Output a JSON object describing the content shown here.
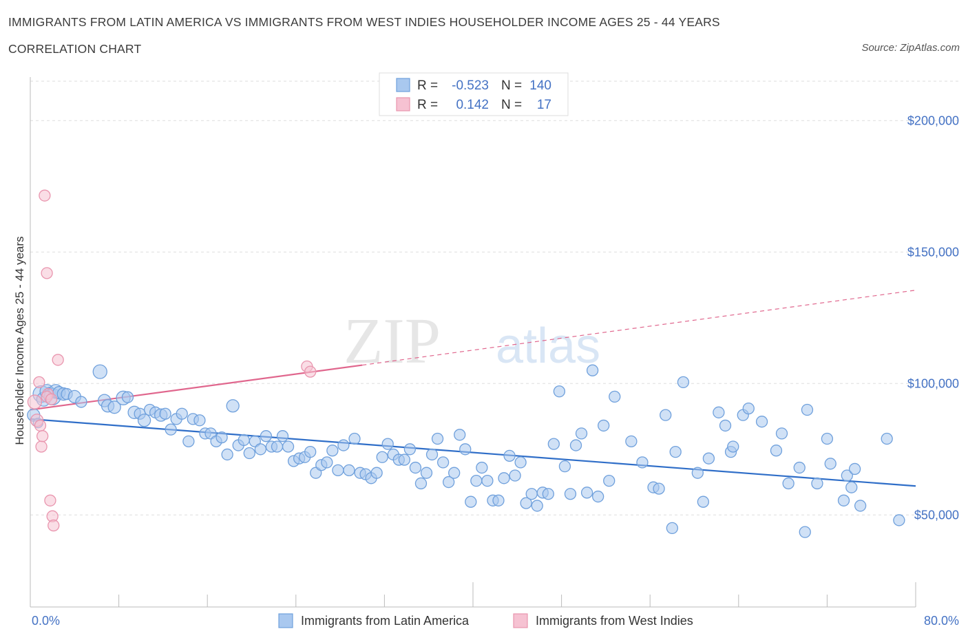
{
  "header": {
    "title": "IMMIGRANTS FROM LATIN AMERICA VS IMMIGRANTS FROM WEST INDIES HOUSEHOLDER INCOME AGES 25 - 44 YEARS",
    "subtitle": "CORRELATION CHART",
    "source": "Source: ZipAtlas.com"
  },
  "watermark": {
    "zip": "ZIP",
    "atlas": "atlas"
  },
  "legend": {
    "rows": [
      {
        "r_label": "R =",
        "r_value": "-0.523",
        "n_label": "N =",
        "n_value": "140"
      },
      {
        "r_label": "R =",
        "r_value": "0.142",
        "n_label": "N =",
        "n_value": "17"
      }
    ]
  },
  "chart_data": {
    "type": "scatter",
    "title": "IMMIGRANTS FROM LATIN AMERICA VS IMMIGRANTS FROM WEST INDIES HOUSEHOLDER INCOME AGES 25 - 44 YEARS",
    "ylabel": "Householder Income Ages 25 - 44 years",
    "xlabel": "",
    "xlim": [
      0,
      80
    ],
    "ylim": [
      15000,
      215000
    ],
    "x_tick_labels": [
      "0.0%",
      "80.0%"
    ],
    "y_ticks": [
      50000,
      100000,
      150000,
      200000
    ],
    "y_tick_labels": [
      "$50,000",
      "$100,000",
      "$150,000",
      "$200,000"
    ],
    "grid": "horizontal dashed",
    "legend_position": "top-center",
    "series": [
      {
        "name": "Immigrants from Latin America",
        "color": "#6fa0dc",
        "fill": "#a9c8ef",
        "trend": {
          "x0": 0,
          "y0": 86500,
          "x1": 80,
          "y1": 61000,
          "style": "solid",
          "color": "#2f6ec8"
        },
        "points": [
          [
            0.3,
            88000,
            9
          ],
          [
            0.7,
            85000,
            7
          ],
          [
            1.0,
            96000,
            12
          ],
          [
            1.2,
            94000,
            10
          ],
          [
            1.5,
            97000,
            10
          ],
          [
            1.8,
            96500,
            8
          ],
          [
            2.0,
            95000,
            12
          ],
          [
            2.3,
            97000,
            10
          ],
          [
            2.6,
            96500,
            9
          ],
          [
            3.0,
            96000,
            9
          ],
          [
            3.3,
            96000,
            8
          ],
          [
            4.0,
            95000,
            9
          ],
          [
            4.6,
            93000,
            8
          ],
          [
            6.3,
            104500,
            10
          ],
          [
            6.7,
            93500,
            9
          ],
          [
            7.0,
            91500,
            9
          ],
          [
            7.6,
            91000,
            9
          ],
          [
            8.4,
            94500,
            10
          ],
          [
            8.8,
            94800,
            8
          ],
          [
            9.4,
            89000,
            9
          ],
          [
            9.9,
            88500,
            8
          ],
          [
            10.3,
            86000,
            9
          ],
          [
            10.8,
            90000,
            8
          ],
          [
            11.3,
            89000,
            8
          ],
          [
            11.8,
            88000,
            9
          ],
          [
            12.2,
            88500,
            8
          ],
          [
            12.7,
            82500,
            8
          ],
          [
            13.2,
            86500,
            8
          ],
          [
            13.7,
            88500,
            8
          ],
          [
            14.3,
            78000,
            8
          ],
          [
            14.7,
            86500,
            8
          ],
          [
            15.3,
            86000,
            8
          ],
          [
            15.8,
            81000,
            8
          ],
          [
            16.3,
            81000,
            8
          ],
          [
            16.8,
            78000,
            8
          ],
          [
            17.3,
            79500,
            8
          ],
          [
            17.8,
            73000,
            8
          ],
          [
            18.3,
            91500,
            9
          ],
          [
            18.8,
            76500,
            8
          ],
          [
            19.3,
            78500,
            8
          ],
          [
            19.8,
            73500,
            8
          ],
          [
            20.3,
            78000,
            8
          ],
          [
            20.8,
            75000,
            8
          ],
          [
            21.3,
            80000,
            8
          ],
          [
            21.8,
            76000,
            8
          ],
          [
            22.3,
            76000,
            8
          ],
          [
            22.8,
            80000,
            8
          ],
          [
            23.3,
            76000,
            8
          ],
          [
            23.8,
            70500,
            8
          ],
          [
            24.3,
            71500,
            8
          ],
          [
            24.8,
            72000,
            8
          ],
          [
            25.3,
            74000,
            8
          ],
          [
            25.8,
            66000,
            8
          ],
          [
            26.3,
            69000,
            8
          ],
          [
            26.8,
            70000,
            8
          ],
          [
            27.3,
            74500,
            8
          ],
          [
            27.8,
            67000,
            8
          ],
          [
            28.3,
            76500,
            8
          ],
          [
            28.8,
            67000,
            8
          ],
          [
            29.3,
            79000,
            8
          ],
          [
            29.8,
            66000,
            8
          ],
          [
            30.3,
            65500,
            8
          ],
          [
            30.8,
            64000,
            8
          ],
          [
            31.3,
            66000,
            8
          ],
          [
            31.8,
            72000,
            8
          ],
          [
            32.3,
            77000,
            8
          ],
          [
            32.8,
            73000,
            8
          ],
          [
            33.3,
            71000,
            8
          ],
          [
            33.8,
            71000,
            8
          ],
          [
            34.3,
            75000,
            8
          ],
          [
            34.8,
            68000,
            8
          ],
          [
            35.3,
            62000,
            8
          ],
          [
            35.8,
            66000,
            8
          ],
          [
            36.3,
            73000,
            8
          ],
          [
            36.8,
            79000,
            8
          ],
          [
            37.3,
            70000,
            8
          ],
          [
            37.8,
            62500,
            8
          ],
          [
            38.3,
            66000,
            8
          ],
          [
            38.8,
            80500,
            8
          ],
          [
            39.3,
            75000,
            8
          ],
          [
            39.8,
            55000,
            8
          ],
          [
            40.3,
            63000,
            8
          ],
          [
            40.8,
            68000,
            8
          ],
          [
            41.3,
            63000,
            8
          ],
          [
            41.8,
            55500,
            8
          ],
          [
            42.3,
            55500,
            8
          ],
          [
            42.8,
            64000,
            8
          ],
          [
            43.3,
            72500,
            8
          ],
          [
            43.8,
            65000,
            8
          ],
          [
            44.3,
            70000,
            8
          ],
          [
            44.8,
            54500,
            8
          ],
          [
            45.3,
            58000,
            8
          ],
          [
            45.8,
            53500,
            8
          ],
          [
            46.3,
            58500,
            8
          ],
          [
            46.8,
            58000,
            8
          ],
          [
            47.3,
            77000,
            8
          ],
          [
            47.8,
            97000,
            8
          ],
          [
            48.3,
            68500,
            8
          ],
          [
            48.8,
            58000,
            8
          ],
          [
            49.3,
            76500,
            8
          ],
          [
            49.8,
            81000,
            8
          ],
          [
            50.3,
            58500,
            8
          ],
          [
            50.8,
            105000,
            8
          ],
          [
            51.3,
            57000,
            8
          ],
          [
            51.8,
            84000,
            8
          ],
          [
            52.3,
            63000,
            8
          ],
          [
            52.8,
            95000,
            8
          ],
          [
            54.3,
            78000,
            8
          ],
          [
            55.3,
            70000,
            8
          ],
          [
            56.3,
            60500,
            8
          ],
          [
            56.8,
            60000,
            8
          ],
          [
            57.4,
            88000,
            8
          ],
          [
            58.0,
            45000,
            8
          ],
          [
            58.3,
            74000,
            8
          ],
          [
            59.0,
            100500,
            8
          ],
          [
            60.3,
            66000,
            8
          ],
          [
            60.8,
            55000,
            8
          ],
          [
            61.3,
            71500,
            8
          ],
          [
            62.2,
            89000,
            8
          ],
          [
            62.8,
            84000,
            8
          ],
          [
            63.3,
            74000,
            8
          ],
          [
            63.5,
            76000,
            8
          ],
          [
            64.4,
            88000,
            8
          ],
          [
            64.9,
            90500,
            8
          ],
          [
            66.1,
            85500,
            8
          ],
          [
            67.4,
            74500,
            8
          ],
          [
            67.9,
            81000,
            8
          ],
          [
            68.5,
            62000,
            8
          ],
          [
            69.5,
            68000,
            8
          ],
          [
            70.0,
            43500,
            8
          ],
          [
            70.2,
            90000,
            8
          ],
          [
            71.1,
            62000,
            8
          ],
          [
            72.0,
            79000,
            8
          ],
          [
            72.3,
            69500,
            8
          ],
          [
            73.5,
            55500,
            8
          ],
          [
            73.8,
            65000,
            8
          ],
          [
            74.2,
            60500,
            8
          ],
          [
            74.5,
            67500,
            8
          ],
          [
            75.0,
            53500,
            8
          ],
          [
            77.4,
            79000,
            8
          ],
          [
            78.5,
            48000,
            8
          ]
        ]
      },
      {
        "name": "Immigrants from West Indies",
        "color": "#e995ae",
        "fill": "#f6c2d2",
        "trend": {
          "x0": 0,
          "y0": 90000,
          "x1": 30,
          "y1": 107000,
          "style": "solid",
          "color": "#e0668d",
          "ext_x1": 80,
          "ext_y1": 135500,
          "ext_style": "dashed"
        },
        "points": [
          [
            0.4,
            93000,
            10
          ],
          [
            0.6,
            86000,
            9
          ],
          [
            0.8,
            100500,
            8
          ],
          [
            0.9,
            84000,
            8
          ],
          [
            1.0,
            76000,
            8
          ],
          [
            1.1,
            80000,
            8
          ],
          [
            1.3,
            171500,
            8
          ],
          [
            1.6,
            96000,
            8
          ],
          [
            1.8,
            55500,
            8
          ],
          [
            1.5,
            95000,
            8
          ],
          [
            1.9,
            94000,
            8
          ],
          [
            1.5,
            142000,
            8
          ],
          [
            2.0,
            49500,
            8
          ],
          [
            2.1,
            46000,
            8
          ],
          [
            2.5,
            109000,
            8
          ],
          [
            25.0,
            106500,
            8
          ],
          [
            25.3,
            104500,
            8
          ]
        ]
      }
    ]
  }
}
